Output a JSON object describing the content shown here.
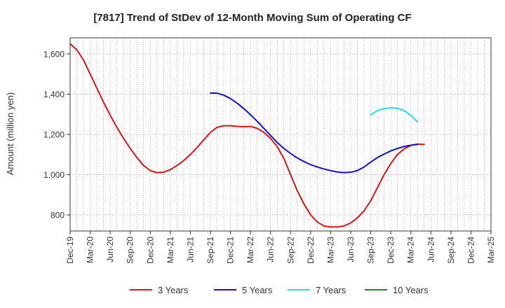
{
  "chart_data": {
    "type": "line",
    "title": "[7817]  Trend of StDev of 12-Month Moving Sum of Operating CF",
    "xlabel": "",
    "ylabel": "Amount (million yen)",
    "ylim": [
      720,
      1680
    ],
    "yticks": [
      800,
      1000,
      1200,
      1400,
      1600
    ],
    "ytick_labels": [
      "800",
      "1,000",
      "1,200",
      "1,400",
      "1,600"
    ],
    "x_months": [
      "Dec-19",
      "Jan-20",
      "Feb-20",
      "Mar-20",
      "Apr-20",
      "May-20",
      "Jun-20",
      "Jul-20",
      "Aug-20",
      "Sep-20",
      "Oct-20",
      "Nov-20",
      "Dec-20",
      "Jan-21",
      "Feb-21",
      "Mar-21",
      "Apr-21",
      "May-21",
      "Jun-21",
      "Jul-21",
      "Aug-21",
      "Sep-21",
      "Oct-21",
      "Nov-21",
      "Dec-21",
      "Jan-22",
      "Feb-22",
      "Mar-22",
      "Apr-22",
      "May-22",
      "Jun-22",
      "Jul-22",
      "Aug-22",
      "Sep-22",
      "Oct-22",
      "Nov-22",
      "Dec-22",
      "Jan-23",
      "Feb-23",
      "Mar-23",
      "Apr-23",
      "May-23",
      "Jun-23",
      "Jul-23",
      "Aug-23",
      "Sep-23",
      "Oct-23",
      "Nov-23",
      "Dec-23",
      "Jan-24",
      "Feb-24",
      "Mar-24",
      "Apr-24",
      "May-24",
      "Jun-24",
      "Jul-24",
      "Aug-24",
      "Sep-24",
      "Oct-24",
      "Nov-24",
      "Dec-24",
      "Jan-25",
      "Feb-25",
      "Mar-25"
    ],
    "xtick_labels": [
      "Dec-19",
      "Mar-20",
      "Jun-20",
      "Sep-20",
      "Dec-20",
      "Mar-21",
      "Jun-21",
      "Sep-21",
      "Dec-21",
      "Mar-22",
      "Jun-22",
      "Sep-22",
      "Dec-22",
      "Mar-23",
      "Jun-23",
      "Sep-23",
      "Dec-23",
      "Mar-24",
      "Jun-24",
      "Sep-24",
      "Dec-24",
      "Mar-25"
    ],
    "grid": true,
    "legend_position": "bottom",
    "series": [
      {
        "name": "3 Years",
        "color": "#dd1111",
        "start_index": 0,
        "values": [
          1650,
          1620,
          1570,
          1500,
          1430,
          1360,
          1295,
          1235,
          1180,
          1130,
          1085,
          1045,
          1020,
          1010,
          1012,
          1025,
          1045,
          1070,
          1100,
          1135,
          1172,
          1210,
          1235,
          1243,
          1243,
          1240,
          1238,
          1240,
          1230,
          1210,
          1180,
          1140,
          1080,
          1000,
          920,
          855,
          800,
          765,
          745,
          740,
          740,
          745,
          760,
          785,
          820,
          870,
          935,
          1000,
          1055,
          1100,
          1128,
          1145,
          1152,
          1150
        ]
      },
      {
        "name": "5 Years",
        "color": "#1111cc",
        "start_index": 21,
        "values": [
          1405,
          1405,
          1395,
          1378,
          1355,
          1328,
          1298,
          1265,
          1230,
          1195,
          1160,
          1130,
          1105,
          1083,
          1065,
          1050,
          1038,
          1028,
          1020,
          1013,
          1010,
          1012,
          1020,
          1038,
          1062,
          1085,
          1102,
          1118,
          1130,
          1140,
          1146,
          1150
        ]
      },
      {
        "name": "7 Years",
        "color": "#22dddd",
        "start_index": 45,
        "values": [
          1298,
          1318,
          1328,
          1333,
          1330,
          1318,
          1295,
          1262
        ]
      },
      {
        "name": "10 Years",
        "color": "#228822",
        "start_index": 0,
        "values": []
      }
    ]
  }
}
